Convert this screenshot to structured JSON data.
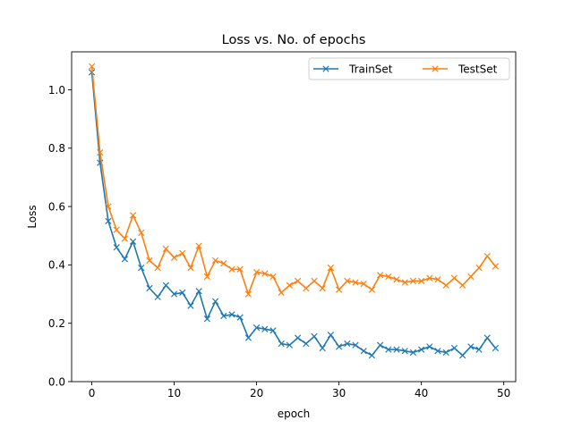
{
  "chart_data": {
    "type": "line",
    "title": "Loss vs. No. of epochs",
    "xlabel": "epoch",
    "ylabel": "Loss",
    "xlim": [
      -2.45,
      51.45
    ],
    "ylim": [
      0,
      1.13
    ],
    "xticks": [
      0,
      10,
      20,
      30,
      40,
      50
    ],
    "yticks": [
      0.0,
      0.2,
      0.4,
      0.6,
      0.8,
      1.0
    ],
    "xtick_labels": [
      "0",
      "10",
      "20",
      "30",
      "40",
      "50"
    ],
    "ytick_labels": [
      "0.0",
      "0.2",
      "0.4",
      "0.6",
      "0.8",
      "1.0"
    ],
    "grid": false,
    "legend": "top-right",
    "marker": "x",
    "x": [
      0,
      1,
      2,
      3,
      4,
      5,
      6,
      7,
      8,
      9,
      10,
      11,
      12,
      13,
      14,
      15,
      16,
      17,
      18,
      19,
      20,
      21,
      22,
      23,
      24,
      25,
      26,
      27,
      28,
      29,
      30,
      31,
      32,
      33,
      34,
      35,
      36,
      37,
      38,
      39,
      40,
      41,
      42,
      43,
      44,
      45,
      46,
      47,
      48,
      49
    ],
    "series": [
      {
        "name": "TrainSet",
        "color": "#1f77b4",
        "values": [
          1.06,
          0.75,
          0.55,
          0.46,
          0.42,
          0.48,
          0.39,
          0.32,
          0.29,
          0.33,
          0.3,
          0.305,
          0.26,
          0.31,
          0.215,
          0.275,
          0.225,
          0.23,
          0.22,
          0.15,
          0.185,
          0.18,
          0.175,
          0.13,
          0.125,
          0.15,
          0.13,
          0.155,
          0.115,
          0.16,
          0.12,
          0.13,
          0.125,
          0.105,
          0.09,
          0.125,
          0.11,
          0.11,
          0.105,
          0.1,
          0.11,
          0.12,
          0.105,
          0.1,
          0.115,
          0.09,
          0.12,
          0.11,
          0.15,
          0.115
        ]
      },
      {
        "name": "TestSet",
        "color": "#ff7f0e",
        "values": [
          1.08,
          0.785,
          0.6,
          0.52,
          0.49,
          0.57,
          0.51,
          0.415,
          0.39,
          0.455,
          0.425,
          0.44,
          0.39,
          0.465,
          0.36,
          0.415,
          0.405,
          0.385,
          0.385,
          0.3,
          0.375,
          0.37,
          0.36,
          0.305,
          0.33,
          0.345,
          0.32,
          0.345,
          0.32,
          0.39,
          0.315,
          0.345,
          0.34,
          0.335,
          0.315,
          0.365,
          0.36,
          0.35,
          0.34,
          0.345,
          0.345,
          0.355,
          0.35,
          0.33,
          0.355,
          0.33,
          0.36,
          0.39,
          0.43,
          0.395
        ]
      }
    ]
  }
}
